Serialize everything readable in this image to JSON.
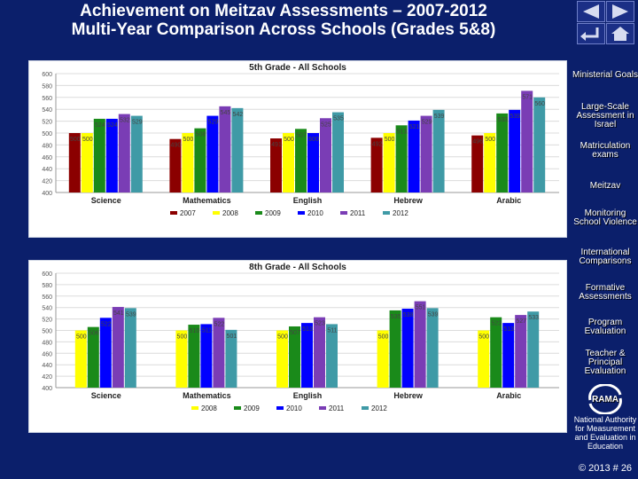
{
  "title": {
    "line1": "Achievement on Meitzav Assessments – 2007-2012",
    "line2": "Multi-Year Comparison Across Schools (Grades 5&8)"
  },
  "nav": {
    "icons": [
      "prev-icon",
      "next-icon",
      "return-icon",
      "home-icon"
    ]
  },
  "sidebar": {
    "items": [
      {
        "label": "Ministerial Goals"
      },
      {
        "label": "Large-Scale Assessment in Israel"
      },
      {
        "label": "Matriculation exams"
      },
      {
        "label": "Meitzav"
      },
      {
        "label": "Monitoring School Violence"
      },
      {
        "label": "International Comparisons"
      },
      {
        "label": "Formative Assessments"
      },
      {
        "label": "Program Evaluation"
      },
      {
        "label": "Teacher & Principal Evaluation"
      }
    ],
    "logo_text": "RAMA",
    "org_name": "National Authority for Measurement and Evaluation in Education",
    "copyright": "© 2013",
    "page_number": "# 26"
  },
  "colors": {
    "background": "#0b1f6b",
    "2007": "#8b0000",
    "2008": "#ffff00",
    "2009": "#1a8a1a",
    "2010": "#0000ff",
    "2011": "#7a3db5",
    "2012": "#3f9aa6"
  },
  "chart_data": [
    {
      "type": "bar",
      "title": "5th Grade - All Schools",
      "categories": [
        "Science",
        "Mathematics",
        "English",
        "Hebrew",
        "Arabic"
      ],
      "ylim": [
        400,
        600
      ],
      "yticks": [
        400,
        420,
        440,
        460,
        480,
        500,
        520,
        540,
        560,
        580,
        600
      ],
      "grid": true,
      "legend": "bottom",
      "series": [
        {
          "name": "2007",
          "color": "#8b0000",
          "values": [
            500,
            490,
            491,
            492,
            496
          ]
        },
        {
          "name": "2008",
          "color": "#ffff00",
          "values": [
            500,
            500,
            500,
            500,
            500
          ]
        },
        {
          "name": "2009",
          "color": "#1a8a1a",
          "values": [
            524,
            508,
            507,
            513,
            533
          ]
        },
        {
          "name": "2010",
          "color": "#0000ff",
          "values": [
            524,
            529,
            500,
            521,
            539
          ]
        },
        {
          "name": "2011",
          "color": "#7a3db5",
          "values": [
            532,
            545,
            525,
            529,
            571
          ]
        },
        {
          "name": "2012",
          "color": "#3f9aa6",
          "values": [
            529,
            542,
            535,
            539,
            560
          ]
        }
      ],
      "data_labels": [
        [
          "500",
          "500",
          "524",
          "524",
          "532",
          "529"
        ],
        [
          "490",
          "500",
          "508",
          "529",
          "545",
          "542"
        ],
        [
          "491",
          "500",
          "507",
          "500",
          "525",
          "535"
        ],
        [
          "492",
          "500",
          "513",
          "521",
          "529",
          "539"
        ],
        [
          "496",
          "500",
          "533",
          "539",
          "571",
          "560"
        ]
      ]
    },
    {
      "type": "bar",
      "title": "8th Grade - All Schools",
      "categories": [
        "Science",
        "Mathematics",
        "English",
        "Hebrew",
        "Arabic"
      ],
      "ylim": [
        400,
        600
      ],
      "yticks": [
        400,
        420,
        440,
        460,
        480,
        500,
        520,
        540,
        560,
        580,
        600
      ],
      "grid": true,
      "legend": "bottom",
      "series": [
        {
          "name": "2008",
          "color": "#ffff00",
          "values": [
            500,
            500,
            500,
            500,
            500
          ]
        },
        {
          "name": "2009",
          "color": "#1a8a1a",
          "values": [
            506,
            510,
            507,
            535,
            523
          ]
        },
        {
          "name": "2010",
          "color": "#0000ff",
          "values": [
            522,
            511,
            513,
            538,
            513
          ]
        },
        {
          "name": "2011",
          "color": "#7a3db5",
          "values": [
            541,
            522,
            523,
            551,
            527
          ]
        },
        {
          "name": "2012",
          "color": "#3f9aa6",
          "values": [
            539,
            501,
            511,
            539,
            533
          ]
        }
      ],
      "data_labels": [
        [
          "500",
          "506",
          "522",
          "541",
          "539"
        ],
        [
          "500",
          "510",
          "511",
          "522",
          "501"
        ],
        [
          "500",
          "507",
          "513",
          "523",
          "511"
        ],
        [
          "500",
          "535",
          "538",
          "551",
          "539"
        ],
        [
          "500",
          "523",
          "513",
          "527",
          "533"
        ]
      ]
    }
  ]
}
